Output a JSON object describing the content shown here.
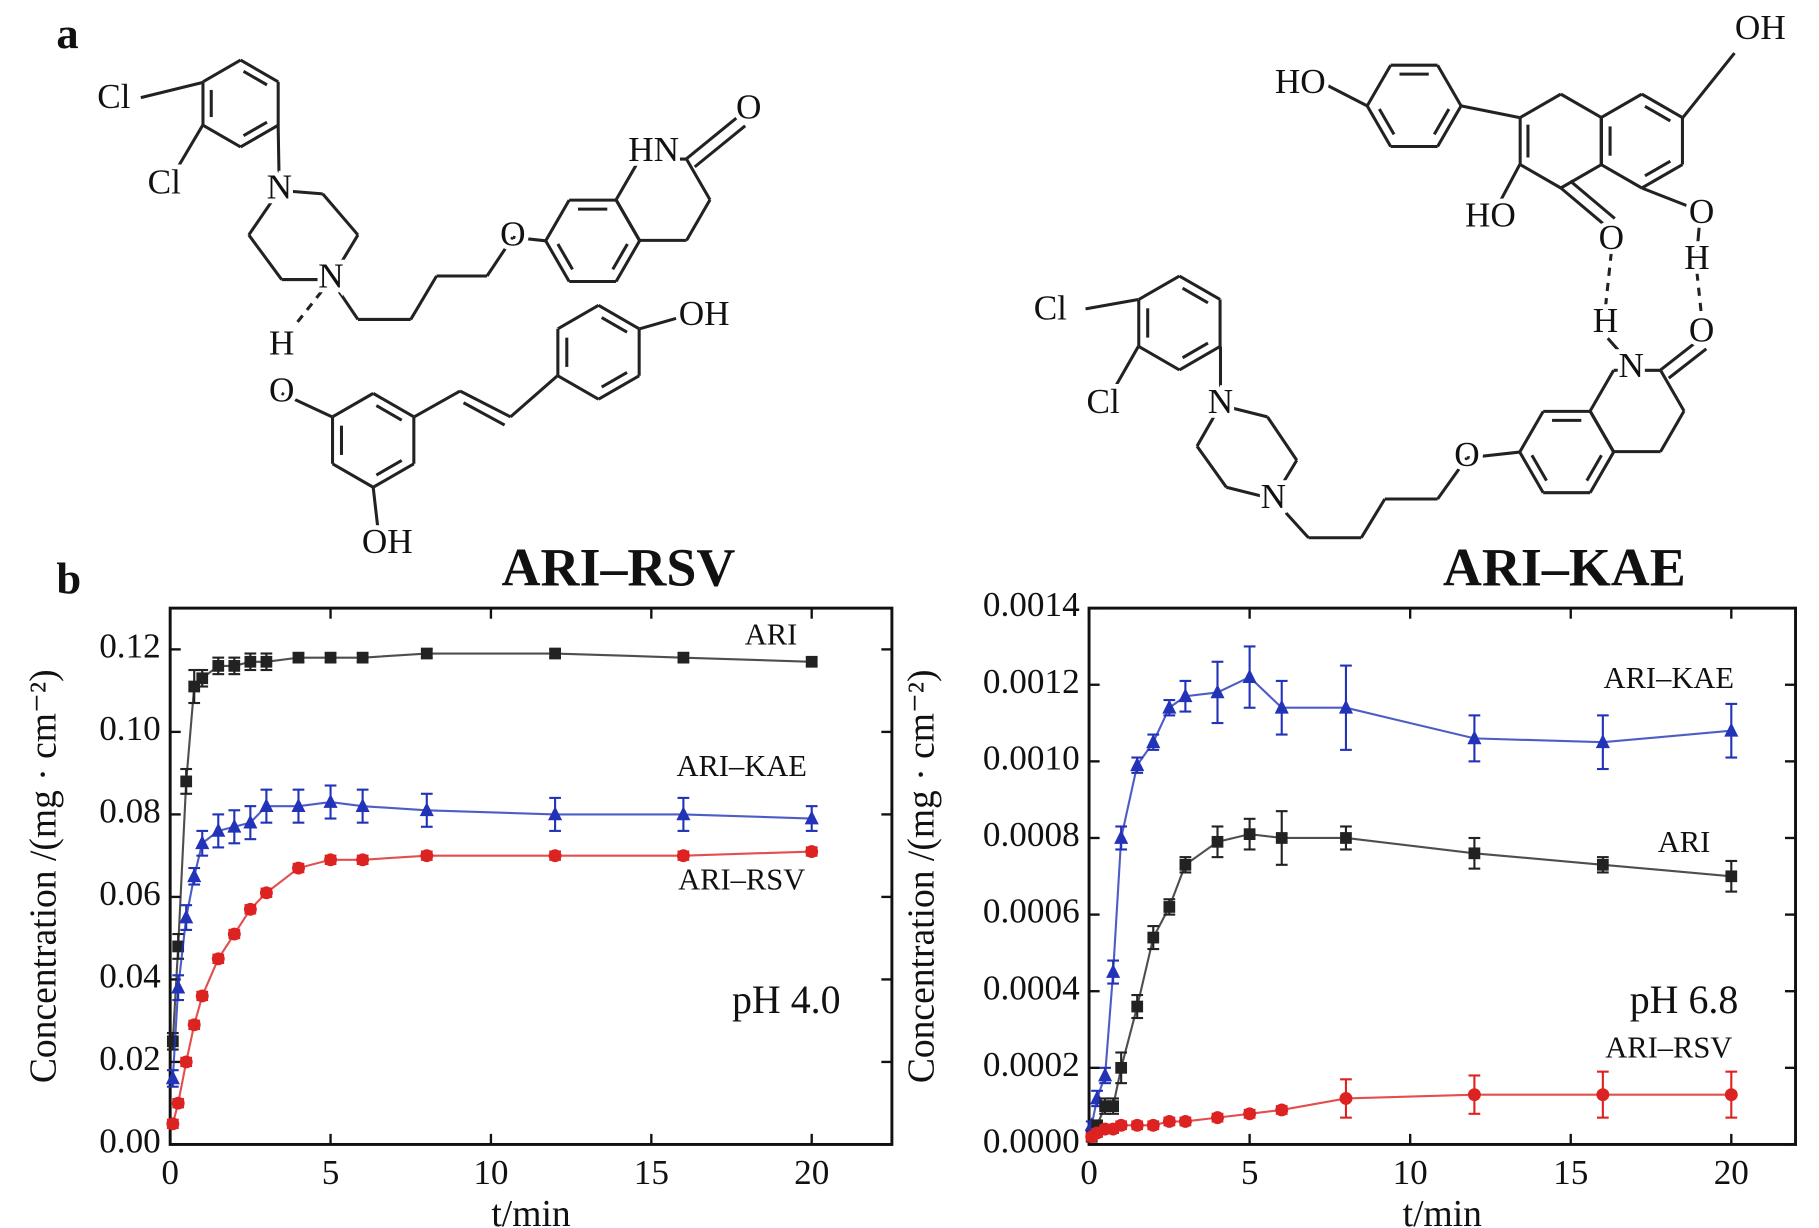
{
  "panel_labels": [
    "a",
    "b"
  ],
  "structures": [
    {
      "name": "ARI–RSV",
      "atoms": [
        "Cl",
        "Cl",
        "N",
        "N",
        "O",
        "HN",
        "O",
        "H",
        "O",
        "OH",
        "OH"
      ]
    },
    {
      "name": "ARI–KAE",
      "atoms": [
        "HO",
        "OH",
        "HO",
        "O",
        "O",
        "H",
        "H",
        "O",
        "N",
        "O",
        "N",
        "N",
        "Cl",
        "Cl"
      ]
    }
  ],
  "chart_data": [
    {
      "type": "line",
      "xlabel": "t/min",
      "ylabel": "Concentration /(mg · cm⁻²)",
      "x": [
        0.083,
        0.25,
        0.5,
        0.75,
        1,
        1.5,
        2,
        2.5,
        3,
        4,
        5,
        6,
        8,
        12,
        16,
        20
      ],
      "xlim": [
        0,
        22.5
      ],
      "ylim": [
        0,
        0.13
      ],
      "xticks": [
        0,
        5,
        10,
        15,
        20
      ],
      "yticks": [
        {
          "value": 0,
          "label": "0.00"
        },
        {
          "value": 0.02,
          "label": "0.02"
        },
        {
          "value": 0.04,
          "label": "0.04"
        },
        {
          "value": 0.06,
          "label": "0.06"
        },
        {
          "value": 0.08,
          "label": "0.08"
        },
        {
          "value": 0.1,
          "label": "0.10"
        },
        {
          "value": 0.12,
          "label": "0.12"
        }
      ],
      "annotations": [
        "pH 4.0"
      ],
      "series": [
        {
          "name": "ARI",
          "color": "#222222",
          "marker": "square",
          "values": [
            0.025,
            0.048,
            0.088,
            0.111,
            0.113,
            0.116,
            0.116,
            0.117,
            0.117,
            0.118,
            0.118,
            0.118,
            0.119,
            0.119,
            0.118,
            0.117
          ],
          "errors": [
            0.002,
            0.003,
            0.003,
            0.004,
            0.002,
            0.002,
            0.002,
            0.002,
            0.002,
            0.001,
            0.001,
            0.001,
            0.001,
            0.001,
            0.001,
            0.001
          ]
        },
        {
          "name": "ARI–KAE",
          "color": "#2233b8",
          "marker": "triangle",
          "values": [
            0.016,
            0.038,
            0.055,
            0.065,
            0.073,
            0.076,
            0.077,
            0.078,
            0.082,
            0.082,
            0.083,
            0.082,
            0.081,
            0.08,
            0.08,
            0.079
          ],
          "errors": [
            0.002,
            0.003,
            0.003,
            0.002,
            0.003,
            0.004,
            0.004,
            0.004,
            0.004,
            0.004,
            0.004,
            0.004,
            0.004,
            0.004,
            0.004,
            0.003
          ]
        },
        {
          "name": "ARI–RSV",
          "color": "#dd2222",
          "marker": "circle",
          "values": [
            0.005,
            0.01,
            0.02,
            0.029,
            0.036,
            0.045,
            0.051,
            0.057,
            0.061,
            0.067,
            0.069,
            0.069,
            0.07,
            0.07,
            0.07,
            0.071
          ],
          "errors": [
            0.001,
            0.001,
            0.001,
            0.001,
            0.001,
            0.001,
            0.001,
            0.001,
            0.001,
            0.001,
            0.001,
            0.001,
            0.001,
            0.001,
            0.001,
            0.001
          ]
        }
      ]
    },
    {
      "type": "line",
      "xlabel": "t/min",
      "ylabel": "Concentration /(mg · cm⁻²)",
      "x": [
        0.083,
        0.25,
        0.5,
        0.75,
        1,
        1.5,
        2,
        2.5,
        3,
        4,
        5,
        6,
        8,
        12,
        16,
        20
      ],
      "xlim": [
        0,
        22
      ],
      "ylim": [
        0,
        0.0014
      ],
      "xticks": [
        0,
        5,
        10,
        15,
        20
      ],
      "yticks": [
        {
          "value": 0,
          "label": "0.0000"
        },
        {
          "value": 0.0002,
          "label": "0.0002"
        },
        {
          "value": 0.0004,
          "label": "0.0004"
        },
        {
          "value": 0.0006,
          "label": "0.0006"
        },
        {
          "value": 0.0008,
          "label": "0.0008"
        },
        {
          "value": 0.001,
          "label": "0.0010"
        },
        {
          "value": 0.0012,
          "label": "0.0012"
        },
        {
          "value": 0.0014,
          "label": "0.0014"
        }
      ],
      "annotations": [
        "pH 6.8"
      ],
      "series": [
        {
          "name": "ARI–KAE",
          "color": "#2233b8",
          "marker": "triangle",
          "values": [
            5e-05,
            0.00012,
            0.00018,
            0.00045,
            0.0008,
            0.00099,
            0.00105,
            0.00114,
            0.00117,
            0.00118,
            0.00122,
            0.00114,
            0.00114,
            0.00106,
            0.00105,
            0.00108
          ],
          "errors": [
            1e-05,
            2e-05,
            2e-05,
            3e-05,
            3e-05,
            2e-05,
            2e-05,
            2e-05,
            4e-05,
            8e-05,
            8e-05,
            7e-05,
            0.00011,
            6e-05,
            7e-05,
            7e-05
          ]
        },
        {
          "name": "ARI",
          "color": "#222222",
          "marker": "square",
          "values": [
            2e-05,
            5e-05,
            0.0001,
            0.0001,
            0.0002,
            0.00036,
            0.00054,
            0.00062,
            0.00073,
            0.00079,
            0.00081,
            0.0008,
            0.0008,
            0.00076,
            0.00073,
            0.0007
          ],
          "errors": [
            1e-05,
            1e-05,
            2e-05,
            2e-05,
            4e-05,
            3e-05,
            3e-05,
            2e-05,
            2e-05,
            4e-05,
            4e-05,
            7e-05,
            3e-05,
            4e-05,
            2e-05,
            4e-05
          ]
        },
        {
          "name": "ARI–RSV",
          "color": "#dd2222",
          "marker": "circle",
          "values": [
            2e-05,
            3e-05,
            4e-05,
            4e-05,
            5e-05,
            5e-05,
            5e-05,
            6e-05,
            6e-05,
            7e-05,
            8e-05,
            9e-05,
            0.00012,
            0.00013,
            0.00013,
            0.00013
          ],
          "errors": [
            1e-05,
            1e-05,
            1e-05,
            1e-05,
            1e-05,
            1e-05,
            1e-05,
            1e-05,
            1e-05,
            1e-05,
            1e-05,
            1e-05,
            5e-05,
            5e-05,
            6e-05,
            6e-05
          ]
        }
      ]
    }
  ]
}
